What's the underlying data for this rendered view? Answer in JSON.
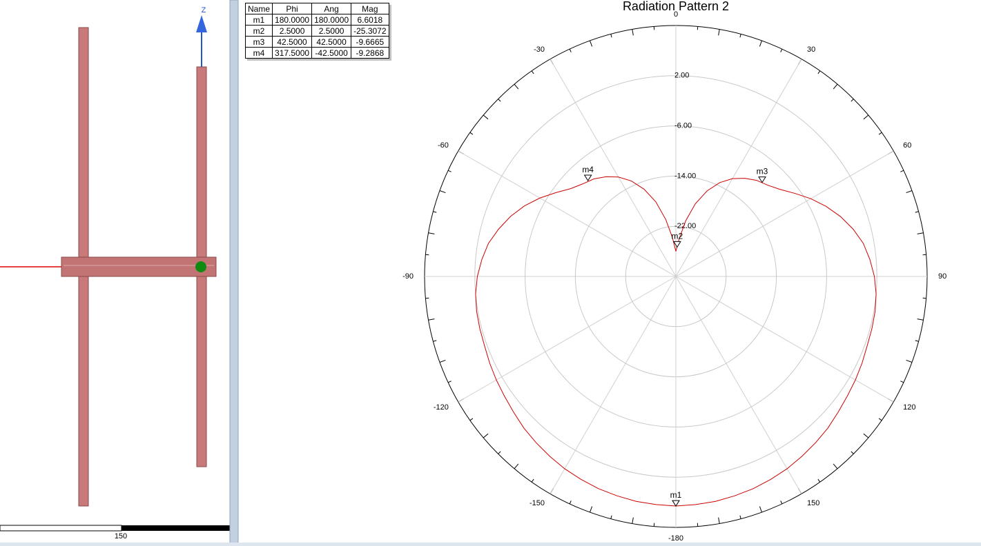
{
  "view3d": {
    "axis_label": "Z",
    "scale_label": "150"
  },
  "marker_table": {
    "header": [
      "Name",
      "Phi",
      "Ang",
      "Mag"
    ],
    "rows": [
      [
        "m1",
        "180.0000",
        "180.0000",
        "6.6018"
      ],
      [
        "m2",
        "2.5000",
        "2.5000",
        "-25.3072"
      ],
      [
        "m3",
        "42.5000",
        "42.5000",
        "-9.6665"
      ],
      [
        "m4",
        "317.5000",
        "-42.5000",
        "-9.2868"
      ]
    ]
  },
  "chart_data": {
    "type": "polar",
    "title": "Radiation Pattern 2",
    "color": "#cc0000",
    "x": [
      -180,
      -175,
      -170,
      -165,
      -160,
      -155,
      -150,
      -145,
      -140,
      -135,
      -130,
      -125,
      -120,
      -115,
      -110,
      -105,
      -100,
      -95,
      -90,
      -85,
      -80,
      -75,
      -70,
      -65,
      -60,
      -55,
      -50,
      -45,
      -40,
      -35,
      -30,
      -25,
      -20,
      -15,
      -10,
      -5,
      0,
      5,
      10,
      15,
      20,
      25,
      30,
      35,
      40,
      45,
      50,
      55,
      60,
      65,
      70,
      75,
      80,
      85,
      90,
      95,
      100,
      105,
      110,
      115,
      120,
      125,
      130,
      135,
      140,
      145,
      150,
      155,
      160,
      165,
      170,
      175,
      180
    ],
    "values": [
      6.6,
      6.5,
      6.4,
      6.2,
      6.0,
      5.7,
      5.4,
      5.0,
      4.6,
      4.2,
      3.7,
      3.3,
      3.0,
      2.7,
      2.4,
      2.3,
      2.2,
      2.0,
      1.6,
      1.0,
      0.3,
      -0.8,
      -2.0,
      -3.4,
      -5.0,
      -6.7,
      -8.2,
      -9.1,
      -9.7,
      -10.6,
      -11.7,
      -13.2,
      -15.2,
      -17.7,
      -20.8,
      -23.8,
      -26.0,
      -24.0,
      -21.0,
      -18.0,
      -15.5,
      -13.5,
      -12.0,
      -10.9,
      -10.0,
      -9.4,
      -8.4,
      -6.9,
      -5.2,
      -3.6,
      -2.1,
      -0.8,
      0.3,
      1.0,
      1.6,
      2.0,
      2.2,
      2.3,
      2.4,
      2.7,
      3.0,
      3.3,
      3.7,
      4.2,
      4.6,
      5.0,
      5.4,
      5.7,
      6.0,
      6.2,
      6.4,
      6.5,
      6.6
    ],
    "ylim": [
      -30,
      10
    ],
    "yticks": [
      {
        "value": -22,
        "label": "-22.00"
      },
      {
        "value": -14,
        "label": "-14.00"
      },
      {
        "value": -6,
        "label": "-6.00"
      },
      {
        "value": 2,
        "label": "2.00"
      }
    ],
    "xticks": [
      -180,
      -150,
      -120,
      -90,
      -60,
      -30,
      0,
      30,
      60,
      90,
      120,
      150
    ],
    "grid": true,
    "markers": [
      {
        "name": "m1",
        "x": 180,
        "value": 6.6018
      },
      {
        "name": "m2",
        "x": 2.5,
        "value": -25.3072
      },
      {
        "name": "m3",
        "x": 42.5,
        "value": -9.6665
      },
      {
        "name": "m4",
        "x": -42.5,
        "value": -9.2868
      }
    ]
  }
}
